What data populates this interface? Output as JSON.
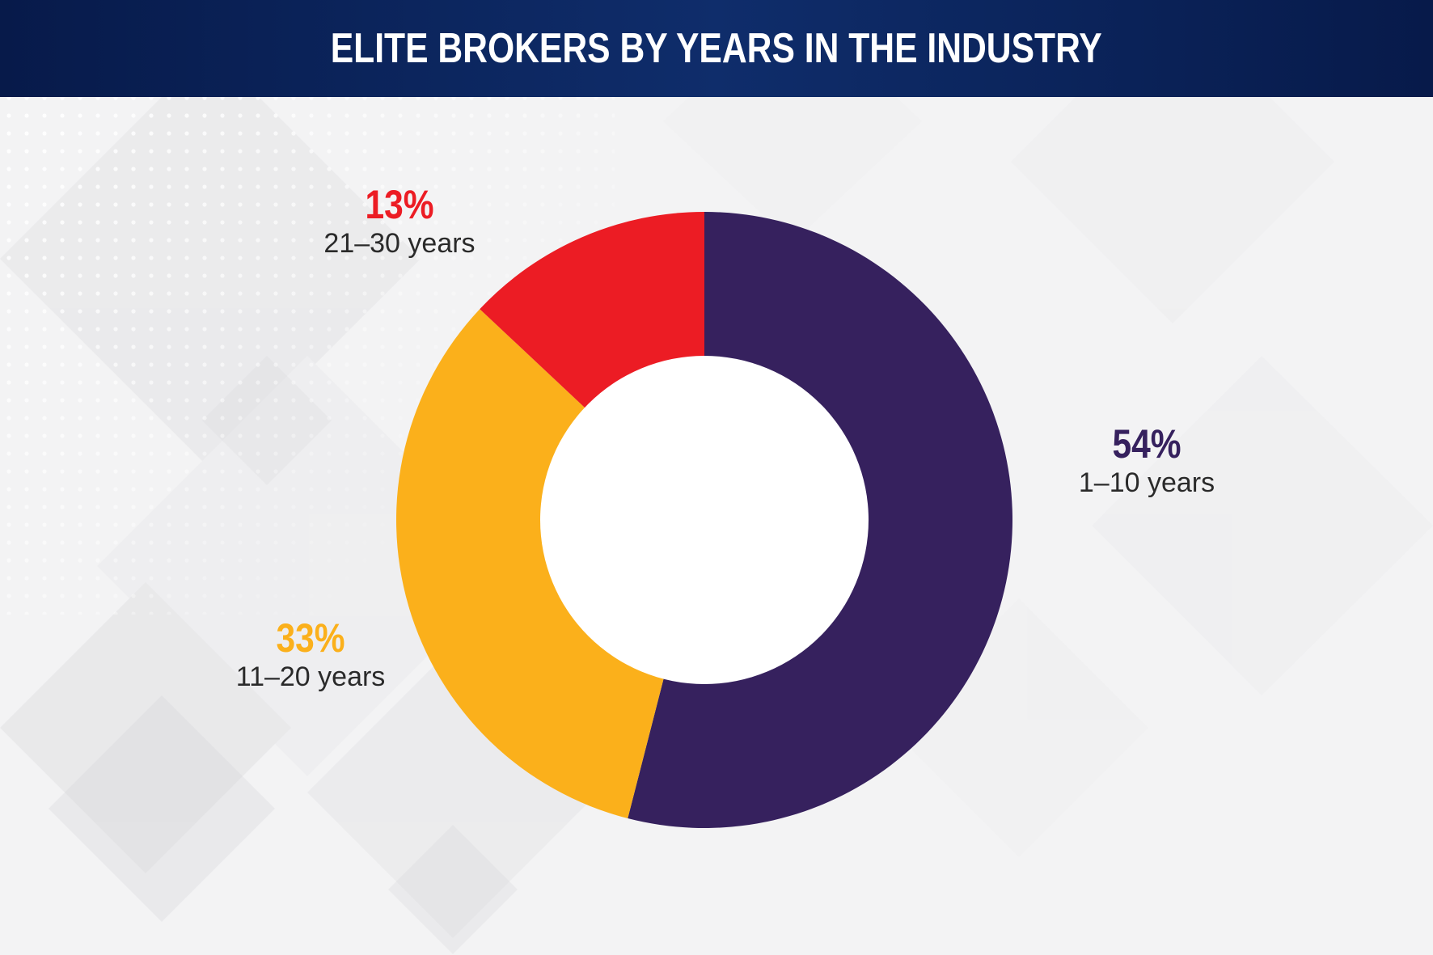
{
  "header": {
    "title": "ELITE BROKERS BY YEARS IN THE INDUSTRY"
  },
  "colors": {
    "header_bg": "#0f2d6b",
    "background": "#f4f4f5",
    "hole": "#ffffff"
  },
  "chart_data": {
    "type": "pie",
    "style": "donut",
    "title": "ELITE BROKERS BY YEARS IN THE INDUSTRY",
    "slices": [
      {
        "label": "1–10 years",
        "value": 54,
        "value_label": "54%",
        "color": "#36215e"
      },
      {
        "label": "11–20 years",
        "value": 33,
        "value_label": "33%",
        "color": "#fbb01b"
      },
      {
        "label": "21–30 years",
        "value": 13,
        "value_label": "13%",
        "color": "#ec1c24"
      }
    ],
    "start_angle": "top",
    "direction": "clockwise",
    "legend": "none"
  }
}
